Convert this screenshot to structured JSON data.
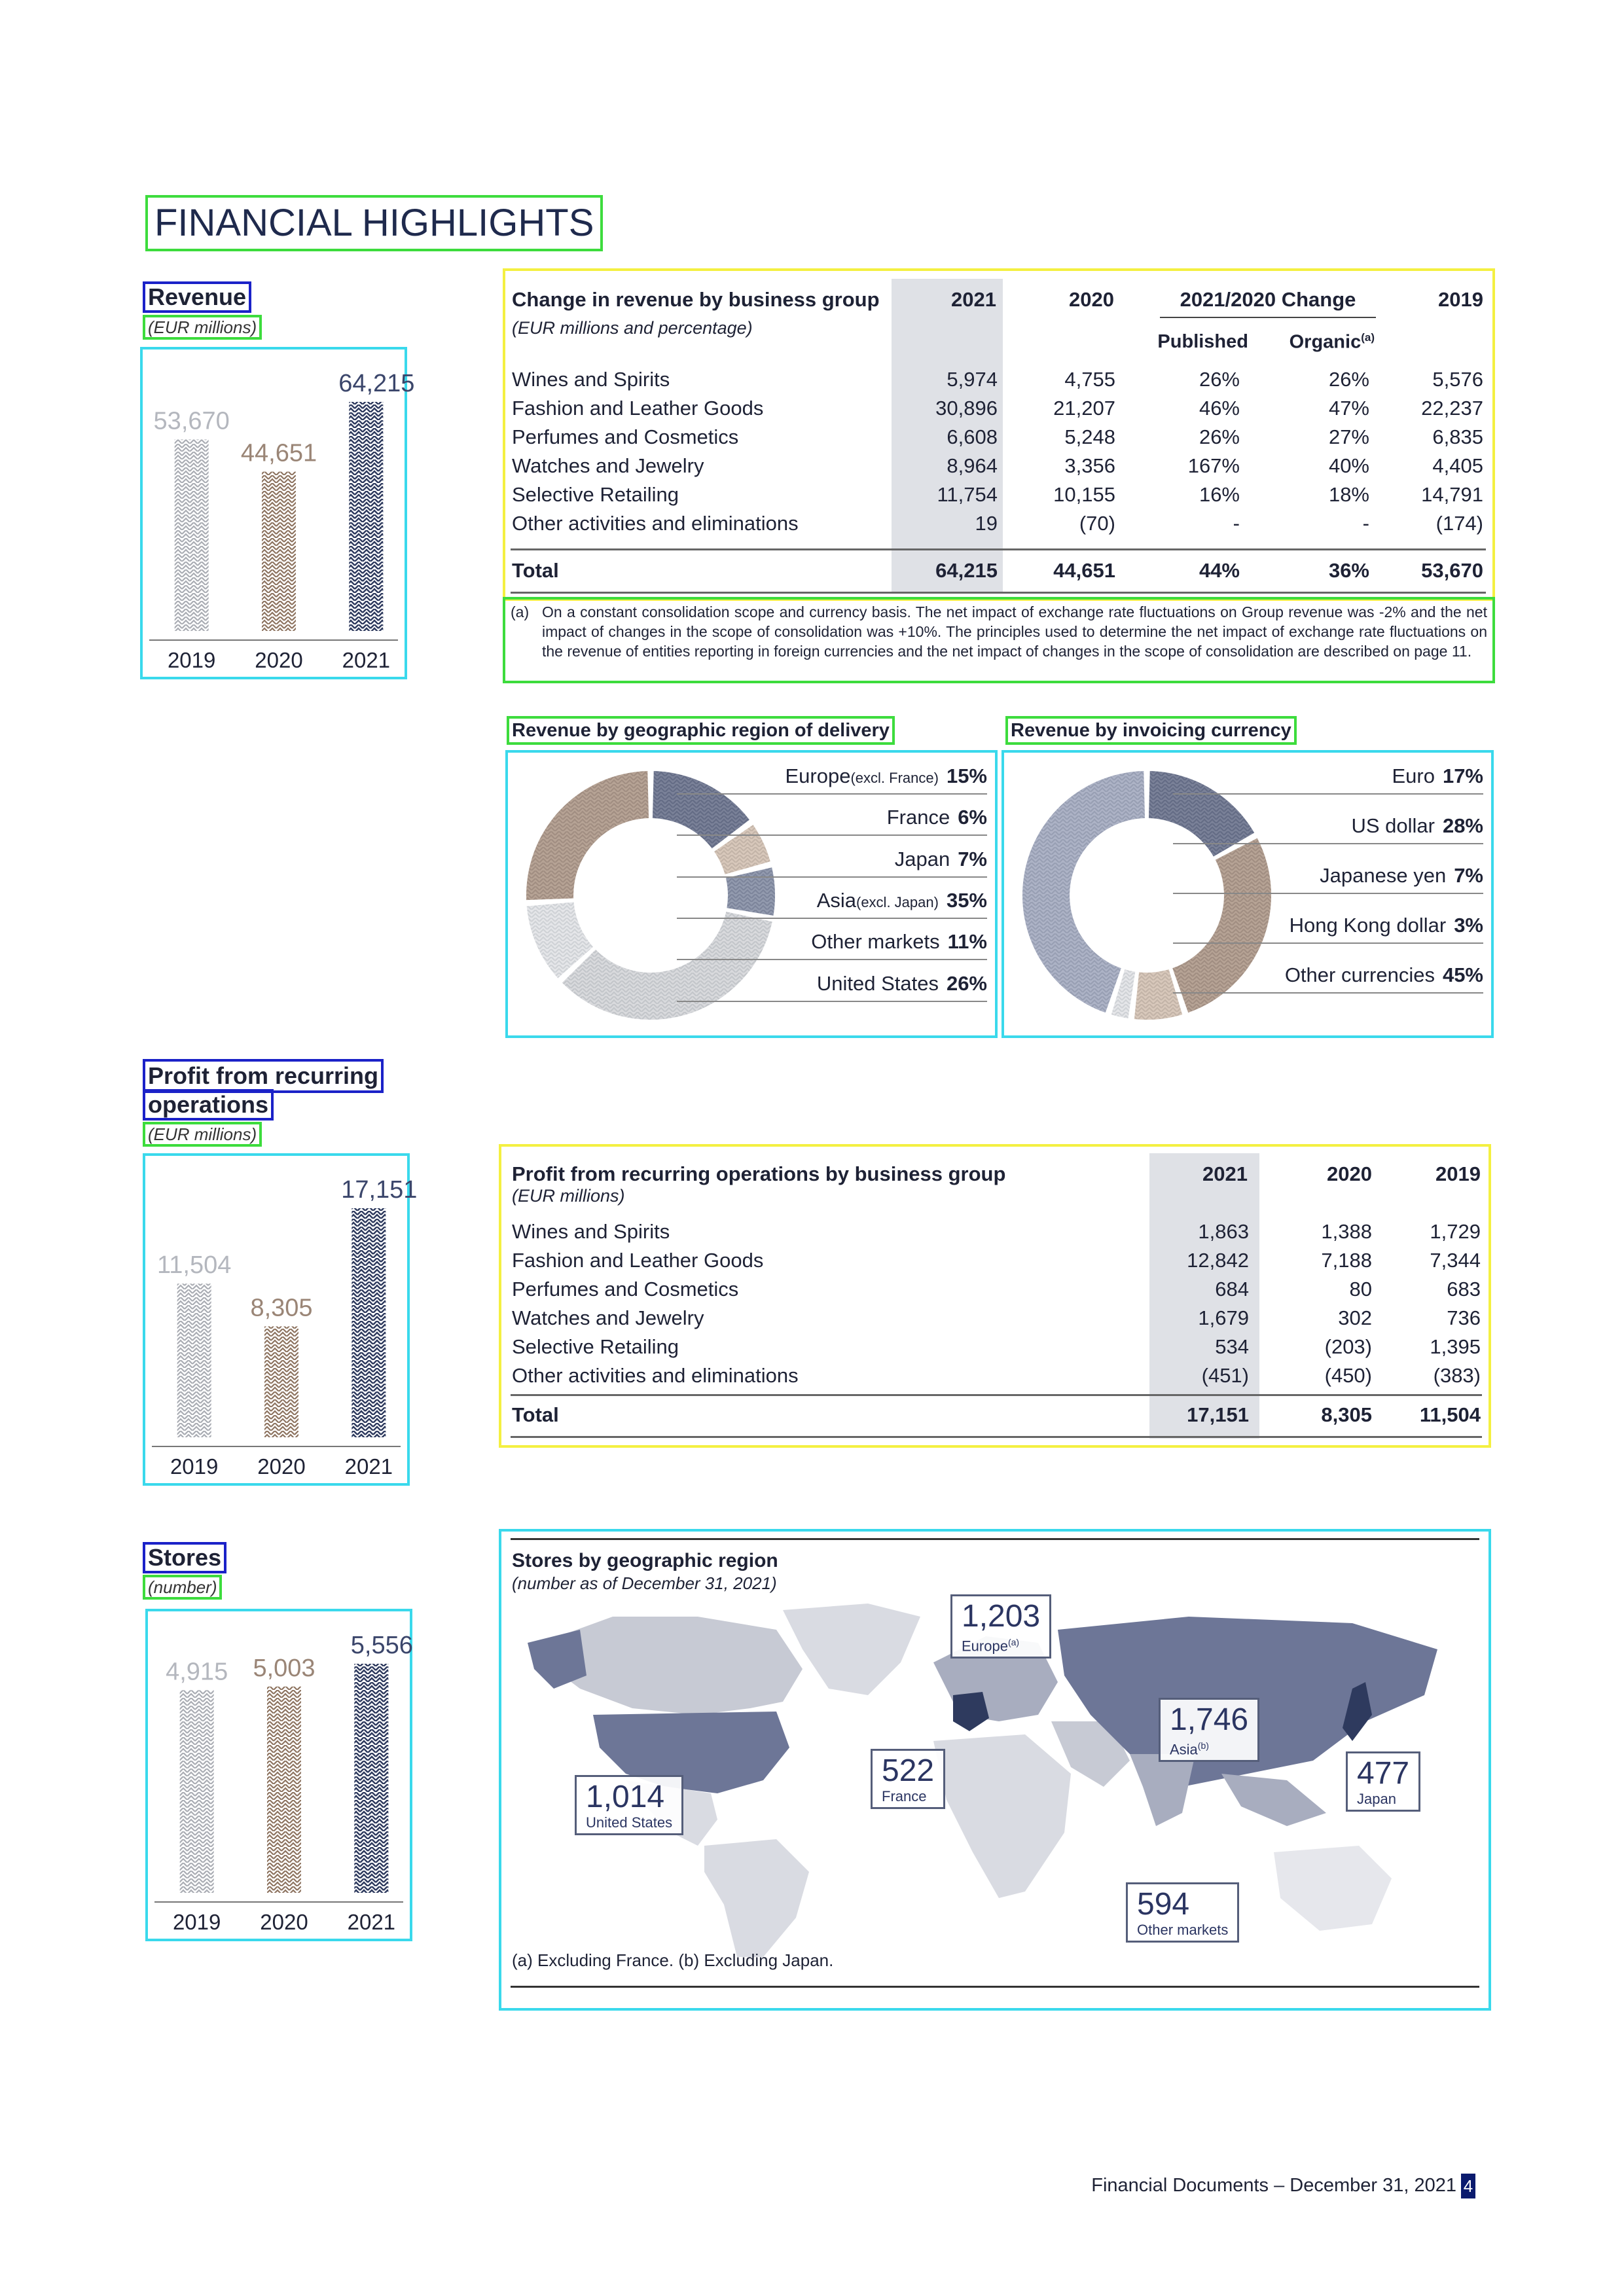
{
  "page": {
    "title": "FINANCIAL HIGHLIGHTS",
    "footer": "Financial Documents – December 31, 2021",
    "page_number": "4"
  },
  "revenue": {
    "title": "Revenue",
    "subtitle": "(EUR millions)",
    "chart_data": {
      "type": "bar",
      "categories": [
        "2019",
        "2020",
        "2021"
      ],
      "values": [
        53670,
        44651,
        64215
      ],
      "value_labels": [
        "53,670",
        "44,651",
        "64,215"
      ],
      "colors": [
        "#b9bcc2",
        "#a08d7e",
        "#2e3a5e"
      ]
    }
  },
  "revenue_table": {
    "title": "Change in revenue by business group",
    "subtitle": "(EUR millions and percentage)",
    "headers": [
      "2021",
      "2020",
      "2021/2020 Change",
      "2019"
    ],
    "subheaders": [
      "Published",
      "Organic"
    ],
    "organic_note_marker": "(a)",
    "rows": [
      [
        "Wines and Spirits",
        "5,974",
        "4,755",
        "26%",
        "26%",
        "5,576"
      ],
      [
        "Fashion and Leather Goods",
        "30,896",
        "21,207",
        "46%",
        "47%",
        "22,237"
      ],
      [
        "Perfumes and Cosmetics",
        "6,608",
        "5,248",
        "26%",
        "27%",
        "6,835"
      ],
      [
        "Watches and Jewelry",
        "8,964",
        "3,356",
        "167%",
        "40%",
        "4,405"
      ],
      [
        "Selective Retailing",
        "11,754",
        "10,155",
        "16%",
        "18%",
        "14,791"
      ],
      [
        "Other activities and eliminations",
        "19",
        "(70)",
        "-",
        "-",
        "(174)"
      ]
    ],
    "total": [
      "Total",
      "64,215",
      "44,651",
      "44%",
      "36%",
      "53,670"
    ],
    "note_marker": "(a)",
    "note": "On a constant consolidation scope and currency basis. The net impact of exchange rate fluctuations on Group revenue was -2% and the net impact of changes in the scope of consolidation was +10%. The principles used to determine the net impact of exchange rate fluctuations on the revenue of entities reporting in foreign currencies and the net impact of changes in the scope of consolidation are described on page 11."
  },
  "geo_donut": {
    "title": "Revenue by geographic region of delivery",
    "chart_data": {
      "type": "pie",
      "labels": [
        "Europe",
        "France",
        "Japan",
        "Asia",
        "Other markets",
        "United States"
      ],
      "label_notes": [
        "(excl. France)",
        "",
        "",
        "(excl. Japan)",
        "",
        ""
      ],
      "values": [
        15,
        6,
        7,
        35,
        11,
        26
      ],
      "value_labels": [
        "15%",
        "6%",
        "7%",
        "35%",
        "11%",
        "26%"
      ],
      "colors": [
        "#2e3a5e",
        "#c2a994",
        "#556080",
        "#c3c5ca",
        "#d6d8dc",
        "#8d6f58"
      ]
    }
  },
  "currency_donut": {
    "title": "Revenue by invoicing currency",
    "chart_data": {
      "type": "pie",
      "labels": [
        "Euro",
        "US dollar",
        "Japanese yen",
        "Hong Kong dollar",
        "Other currencies"
      ],
      "values": [
        17,
        28,
        7,
        3,
        45
      ],
      "value_labels": [
        "17%",
        "28%",
        "7%",
        "3%",
        "45%"
      ],
      "colors": [
        "#2e3a5e",
        "#8d6f58",
        "#c2a994",
        "#d6d8dc",
        "#7f88a6"
      ]
    }
  },
  "profit": {
    "title_line1": "Profit from recurring",
    "title_line2": "operations",
    "subtitle": "(EUR millions)",
    "chart_data": {
      "type": "bar",
      "categories": [
        "2019",
        "2020",
        "2021"
      ],
      "values": [
        11504,
        8305,
        17151
      ],
      "value_labels": [
        "11,504",
        "8,305",
        "17,151"
      ],
      "colors": [
        "#b9bcc2",
        "#a08d7e",
        "#2e3a5e"
      ]
    }
  },
  "profit_table": {
    "title": "Profit from recurring operations by business group",
    "subtitle": "(EUR millions)",
    "headers": [
      "2021",
      "2020",
      "2019"
    ],
    "rows": [
      [
        "Wines and Spirits",
        "1,863",
        "1,388",
        "1,729"
      ],
      [
        "Fashion and Leather Goods",
        "12,842",
        "7,188",
        "7,344"
      ],
      [
        "Perfumes and Cosmetics",
        "684",
        "80",
        "683"
      ],
      [
        "Watches and Jewelry",
        "1,679",
        "302",
        "736"
      ],
      [
        "Selective Retailing",
        "534",
        "(203)",
        "1,395"
      ],
      [
        "Other activities and eliminations",
        "(451)",
        "(450)",
        "(383)"
      ]
    ],
    "total": [
      "Total",
      "17,151",
      "8,305",
      "11,504"
    ]
  },
  "stores": {
    "title": "Stores",
    "subtitle": "(number)",
    "chart_data": {
      "type": "bar",
      "categories": [
        "2019",
        "2020",
        "2021"
      ],
      "values": [
        4915,
        5003,
        5556
      ],
      "value_labels": [
        "4,915",
        "5,003",
        "5,556"
      ],
      "colors": [
        "#b9bcc2",
        "#a08d7e",
        "#2e3a5e"
      ]
    }
  },
  "stores_map": {
    "title": "Stores by geographic region",
    "subtitle": "(number as of December 31, 2021)",
    "regions": [
      {
        "value": "1,203",
        "label": "Europe",
        "marker": "(a)"
      },
      {
        "value": "1,746",
        "label": "Asia",
        "marker": "(b)"
      },
      {
        "value": "522",
        "label": "France",
        "marker": ""
      },
      {
        "value": "1,014",
        "label": "United States",
        "marker": ""
      },
      {
        "value": "477",
        "label": "Japan",
        "marker": ""
      },
      {
        "value": "594",
        "label": "Other markets",
        "marker": ""
      }
    ],
    "footnote": "(a) Excluding France. (b) Excluding Japan."
  }
}
